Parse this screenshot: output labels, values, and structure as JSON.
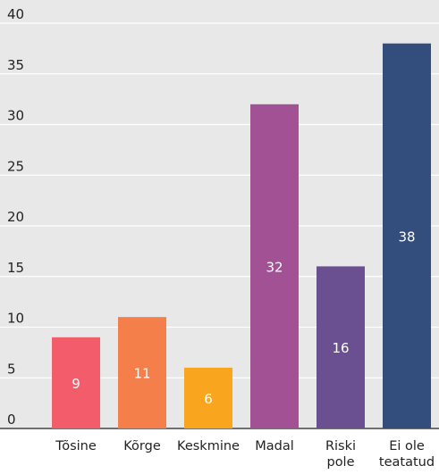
{
  "chart_data": {
    "type": "bar",
    "categories": [
      [
        "Tõsine"
      ],
      [
        "Kõrge"
      ],
      [
        "Keskmine"
      ],
      [
        "Madal"
      ],
      [
        "Riski",
        "pole"
      ],
      [
        "Ei ole",
        "teatatud"
      ]
    ],
    "values": [
      9,
      11,
      6,
      32,
      16,
      38
    ],
    "data_labels": [
      "9",
      "11",
      "6",
      "32",
      "16",
      "38"
    ],
    "ylim": [
      0,
      40
    ],
    "yticks": [
      0,
      5,
      10,
      15,
      20,
      25,
      30,
      35,
      40
    ],
    "ytick_labels": [
      "0",
      "5",
      "10",
      "15",
      "20",
      "25",
      "30",
      "35",
      "40"
    ],
    "title": "",
    "xlabel": "",
    "ylabel": "",
    "grid": true,
    "legend": "none",
    "colors": [
      "#f25c6b",
      "#f47f4a",
      "#f9a51d",
      "#a25195",
      "#6a5091",
      "#334d7c"
    ],
    "background_color": "#e8e8e8",
    "grid_color": "#ffffff"
  }
}
